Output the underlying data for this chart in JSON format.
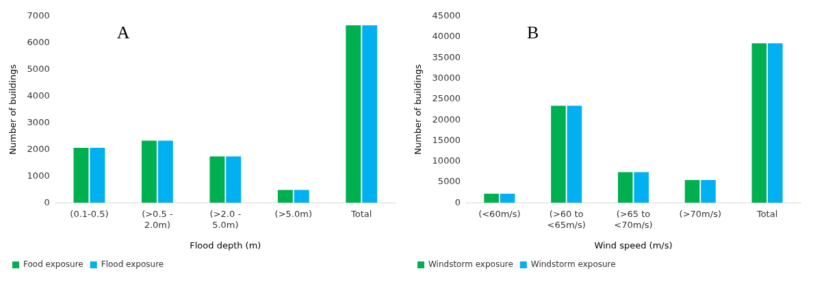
{
  "chart_data": [
    {
      "type": "bar",
      "title": "A",
      "xlabel": "Flood depth (m)",
      "ylabel": "Number of buildings",
      "categories": [
        "(0.1-0.5)",
        "(>0.5 - 2.0m)",
        "(>2.0 - 5.0m)",
        "(>5.0m)",
        "Total"
      ],
      "series": [
        {
          "name": "Food exposure",
          "color": "#00b050",
          "values": [
            2060,
            2330,
            1740,
            480,
            6660
          ]
        },
        {
          "name": "Flood exposure",
          "color": "#00b0f0",
          "values": [
            2060,
            2330,
            1740,
            480,
            6660
          ]
        }
      ],
      "ylim": [
        0,
        7000
      ],
      "yticks": [
        0,
        1000,
        2000,
        3000,
        4000,
        5000,
        6000,
        7000
      ],
      "grid": false,
      "legend": "bottom left"
    },
    {
      "type": "bar",
      "title": "B",
      "xlabel": "Wind speed (m/s)",
      "ylabel": "Number of buildings",
      "categories": [
        "(<60m/s)",
        "(>60 to <65m/s)",
        "(>65 to <70m/s)",
        "(>70m/s)",
        "Total"
      ],
      "series": [
        {
          "name": "Windstorm exposure",
          "color": "#00b050",
          "values": [
            2200,
            23400,
            7400,
            5500,
            38500
          ]
        },
        {
          "name": "Windstorm exposure",
          "color": "#00b0f0",
          "values": [
            2200,
            23400,
            7400,
            5500,
            38500
          ]
        }
      ],
      "ylim": [
        0,
        45000
      ],
      "yticks": [
        0,
        5000,
        10000,
        15000,
        20000,
        25000,
        30000,
        35000,
        40000,
        45000
      ],
      "grid": false,
      "legend": "bottom left"
    }
  ]
}
